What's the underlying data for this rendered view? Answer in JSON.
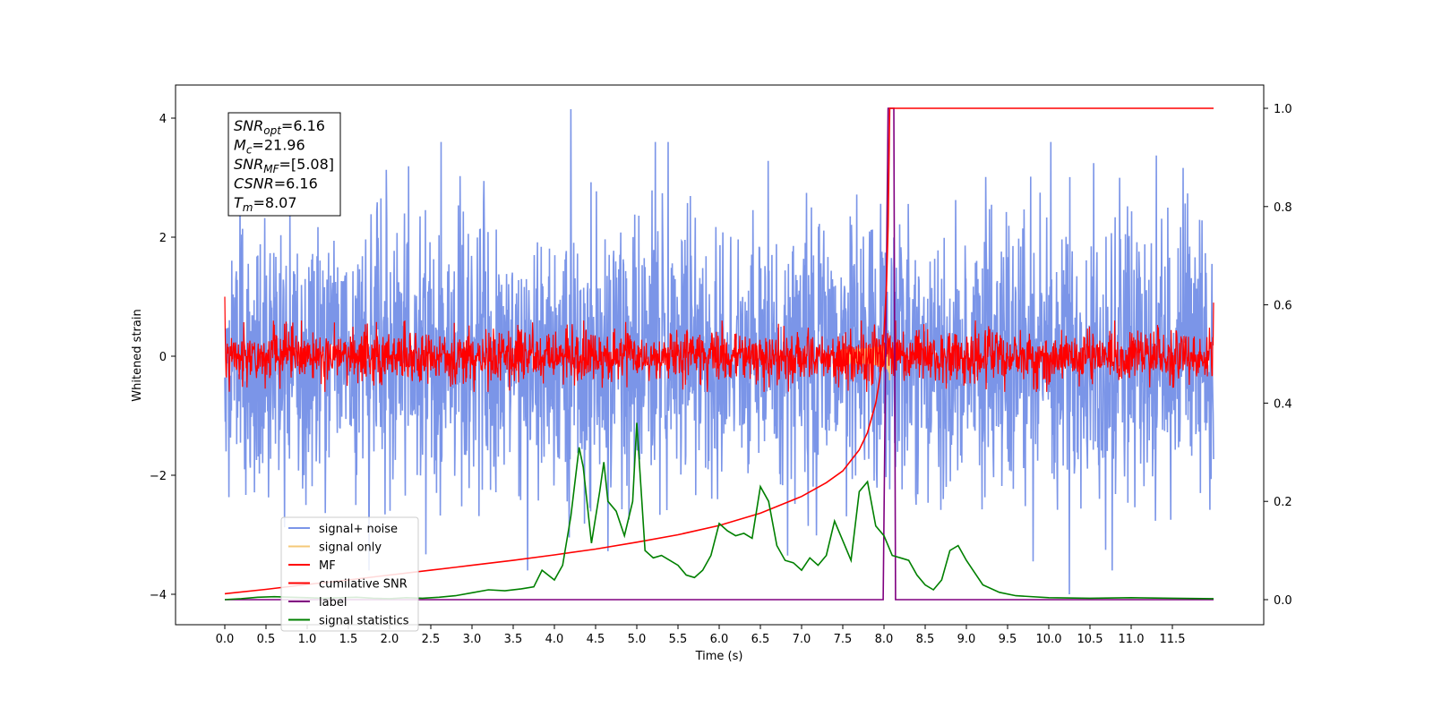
{
  "chart_data": {
    "type": "line",
    "title": "",
    "xlabel": "Time (s)",
    "ylabel": "Whitened strain",
    "xlim": [
      -0.6,
      12.6
    ],
    "ylim": [
      -4.5,
      4.6
    ],
    "y2lim": [
      -0.05,
      1.04
    ],
    "x_ticks": [
      "0.0",
      "0.5",
      "1.0",
      "1.5",
      "2.0",
      "2.5",
      "3.0",
      "3.5",
      "4.0",
      "4.5",
      "5.0",
      "5.5",
      "6.0",
      "6.5",
      "7.0",
      "7.5",
      "8.0",
      "8.5",
      "9.0",
      "9.5",
      "10.0",
      "10.5",
      "11.0",
      "11.5"
    ],
    "y_ticks": [
      "4",
      "2",
      "0",
      "−2",
      "−4"
    ],
    "y2_ticks": [
      "1.0",
      "0.8",
      "0.6",
      "0.4",
      "0.2",
      "0.0"
    ],
    "legend_position": "lower-left",
    "annotation": {
      "lines": [
        {
          "sym": "SNR",
          "sub": "opt",
          "val": "=6.16"
        },
        {
          "sym": "M",
          "sub": "c",
          "val": "=21.96"
        },
        {
          "sym": "SNR",
          "sub": "MF",
          "val": "=[5.08]"
        },
        {
          "sym": "CSNR",
          "sub": "",
          "val": "=6.16"
        },
        {
          "sym": "T",
          "sub": "m",
          "val": "=8.07"
        }
      ]
    },
    "series": [
      {
        "name": "signal+ noise",
        "color": "#7b95e8",
        "axis": "left",
        "kind": "noise",
        "x_range": [
          0,
          12
        ],
        "amplitude_sd": 1.15,
        "peaks": [
          {
            "x": 4.2,
            "y": 4.15
          },
          {
            "x": 10.25,
            "y": -4.0
          }
        ]
      },
      {
        "name": "signal only",
        "color": "#f5c878",
        "axis": "left",
        "kind": "chirp",
        "merger_time": 8.07,
        "peak_amplitude": 0.45
      },
      {
        "name": "MF",
        "color": "#ff0000",
        "axis": "left",
        "kind": "noise",
        "x_range": [
          0,
          12
        ],
        "amplitude_sd": 0.22,
        "edges": [
          {
            "x": 0.0,
            "y": 1.0
          },
          {
            "x": 12.0,
            "y": 0.9
          }
        ]
      },
      {
        "name": "cumilative SNR",
        "color": "#ff0000",
        "axis": "right",
        "kind": "line",
        "x": [
          0.0,
          0.5,
          1.0,
          1.5,
          2.0,
          2.5,
          3.0,
          3.5,
          4.0,
          4.5,
          5.0,
          5.5,
          6.0,
          6.5,
          7.0,
          7.3,
          7.5,
          7.7,
          7.8,
          7.9,
          7.95,
          8.0,
          8.03,
          8.05,
          8.07,
          12.0
        ],
        "y": [
          0.012,
          0.021,
          0.031,
          0.04,
          0.05,
          0.06,
          0.07,
          0.08,
          0.091,
          0.103,
          0.117,
          0.132,
          0.151,
          0.176,
          0.21,
          0.238,
          0.262,
          0.305,
          0.34,
          0.4,
          0.45,
          0.54,
          0.64,
          0.76,
          1.0,
          1.0
        ]
      },
      {
        "name": "label",
        "color": "#800080",
        "axis": "right",
        "kind": "line",
        "x": [
          0.0,
          7.99,
          8.05,
          8.12,
          8.14,
          12.0
        ],
        "y": [
          0.0,
          0.0,
          1.0,
          1.0,
          0.0,
          0.0
        ]
      },
      {
        "name": "signal statistics",
        "color": "#008000",
        "axis": "right",
        "kind": "line",
        "x": [
          0.0,
          0.2,
          0.4,
          0.6,
          0.8,
          1.0,
          1.2,
          1.4,
          1.6,
          1.8,
          2.0,
          2.2,
          2.4,
          2.6,
          2.8,
          3.0,
          3.2,
          3.4,
          3.6,
          3.75,
          3.85,
          4.0,
          4.1,
          4.2,
          4.3,
          4.35,
          4.45,
          4.55,
          4.6,
          4.65,
          4.75,
          4.85,
          4.95,
          5.0,
          5.1,
          5.2,
          5.3,
          5.4,
          5.5,
          5.6,
          5.7,
          5.8,
          5.9,
          6.0,
          6.1,
          6.2,
          6.3,
          6.4,
          6.5,
          6.6,
          6.7,
          6.8,
          6.9,
          7.0,
          7.1,
          7.2,
          7.3,
          7.4,
          7.5,
          7.6,
          7.7,
          7.8,
          7.9,
          8.0,
          8.1,
          8.2,
          8.3,
          8.4,
          8.5,
          8.6,
          8.7,
          8.8,
          8.9,
          9.0,
          9.2,
          9.4,
          9.6,
          10.0,
          10.5,
          11.0,
          11.5,
          12.0
        ],
        "y": [
          0.0,
          0.002,
          0.005,
          0.006,
          0.005,
          0.004,
          0.003,
          0.004,
          0.005,
          0.003,
          0.002,
          0.004,
          0.003,
          0.005,
          0.008,
          0.014,
          0.02,
          0.018,
          0.022,
          0.026,
          0.06,
          0.04,
          0.07,
          0.17,
          0.31,
          0.27,
          0.115,
          0.22,
          0.28,
          0.2,
          0.18,
          0.13,
          0.2,
          0.36,
          0.1,
          0.085,
          0.09,
          0.08,
          0.07,
          0.05,
          0.045,
          0.06,
          0.09,
          0.155,
          0.14,
          0.13,
          0.135,
          0.125,
          0.23,
          0.2,
          0.11,
          0.08,
          0.075,
          0.06,
          0.085,
          0.07,
          0.09,
          0.16,
          0.12,
          0.08,
          0.22,
          0.24,
          0.15,
          0.13,
          0.09,
          0.085,
          0.08,
          0.05,
          0.03,
          0.02,
          0.04,
          0.1,
          0.11,
          0.08,
          0.03,
          0.015,
          0.008,
          0.004,
          0.003,
          0.004,
          0.003,
          0.002
        ]
      }
    ]
  }
}
